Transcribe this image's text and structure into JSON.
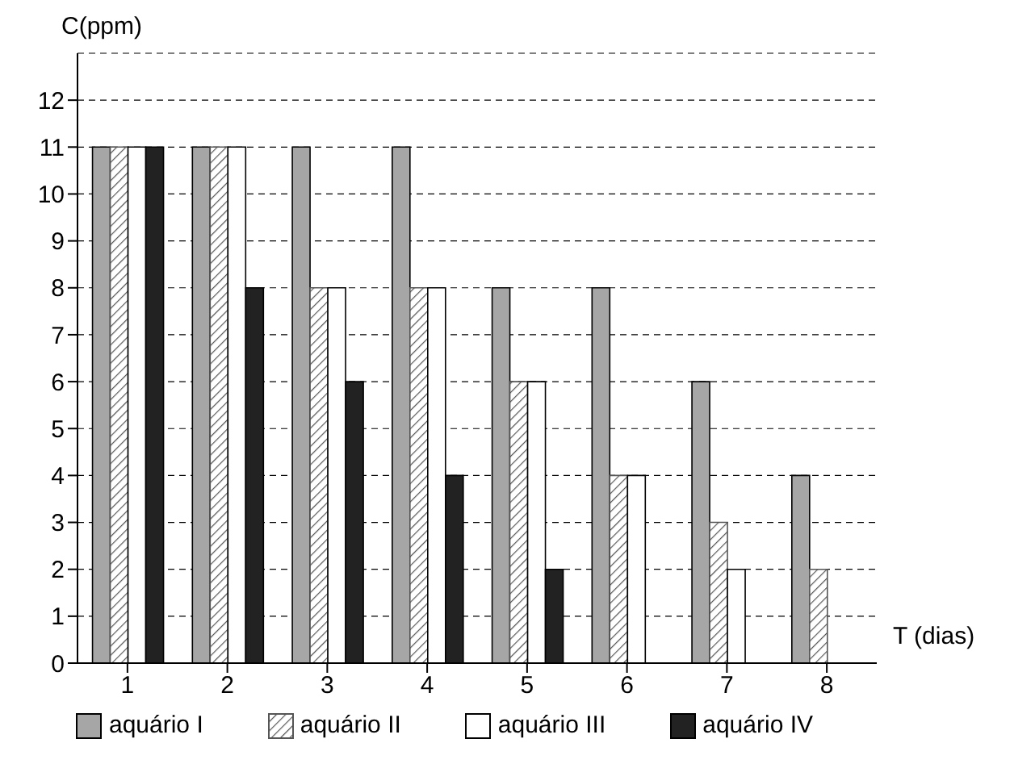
{
  "chart_data": {
    "type": "bar",
    "ylabel": "C(ppm)",
    "xlabel": "T (dias)",
    "categories": [
      "1",
      "2",
      "3",
      "4",
      "5",
      "6",
      "7",
      "8"
    ],
    "series": [
      {
        "name": "aquário I",
        "color": "#a6a6a6",
        "values": [
          11,
          11,
          11,
          11,
          8,
          8,
          6,
          4
        ]
      },
      {
        "name": "aquário II",
        "color": "#555555",
        "values": [
          11,
          11,
          8,
          8,
          6,
          4,
          3,
          2
        ]
      },
      {
        "name": "aquário III",
        "color": "#ffffff",
        "values": [
          11,
          11,
          8,
          8,
          6,
          4,
          2,
          null
        ]
      },
      {
        "name": "aquário IV",
        "color": "#222222",
        "values": [
          11,
          8,
          6,
          4,
          2,
          null,
          null,
          null
        ]
      }
    ],
    "ylim": [
      0,
      13
    ],
    "yticks": [
      0,
      1,
      2,
      3,
      4,
      5,
      6,
      7,
      8,
      9,
      10,
      11,
      12
    ],
    "grid": "y",
    "legend": "bottom"
  }
}
